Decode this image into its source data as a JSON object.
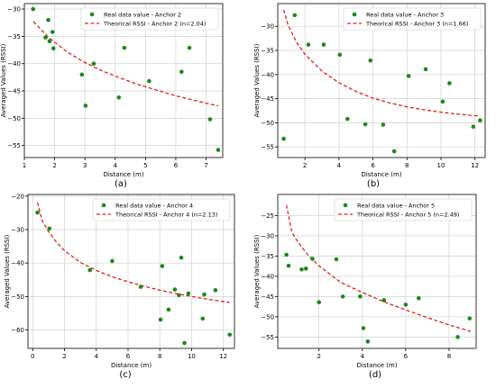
{
  "chart_data": [
    {
      "type": "scatter",
      "panel_label": "(a)",
      "xlabel": "Distance (m)",
      "ylabel": "Averaged Values (RSSI)",
      "xlim": [
        1.0,
        7.55
      ],
      "ylim": [
        -57.2,
        -29.0
      ],
      "xticks": [
        1,
        2,
        3,
        4,
        5,
        6,
        7
      ],
      "yticks": [
        -55,
        -50,
        -45,
        -40,
        -35,
        -30
      ],
      "grid": true,
      "legend_position": "top-right",
      "series": [
        {
          "name": "Real data value - Anchor 2",
          "kind": "points",
          "color": "#1a8a1a",
          "x": [
            1.29,
            1.7,
            1.79,
            1.83,
            1.93,
            1.96,
            2.9,
            3.02,
            3.29,
            4.12,
            4.3,
            5.12,
            6.19,
            6.45,
            7.13,
            7.4
          ],
          "y": [
            -30.0,
            -35.2,
            -32.0,
            -35.9,
            -34.2,
            -37.2,
            -42.0,
            -47.7,
            -40.0,
            -46.2,
            -37.1,
            -43.2,
            -41.5,
            -37.1,
            -50.2,
            -55.8
          ]
        },
        {
          "name": "Theorical RSSI - Anchor 2 (n=2.04)",
          "kind": "line",
          "color": "#e0201c",
          "x": [
            1.3,
            1.8,
            2.4,
            3.0,
            3.6,
            4.2,
            4.8,
            5.4,
            6.0,
            6.6,
            7.2,
            7.4
          ],
          "y": [
            -32.3,
            -35.2,
            -37.8,
            -39.8,
            -41.4,
            -42.7,
            -43.9,
            -44.9,
            -45.9,
            -46.7,
            -47.5,
            -47.7
          ]
        }
      ]
    },
    {
      "type": "scatter",
      "panel_label": "(b)",
      "xlabel": "Distance (m)",
      "ylabel": "Averaged Values (RSSI)",
      "xlim": [
        0.4,
        12.6
      ],
      "ylim": [
        -57.2,
        -25.3
      ],
      "xticks": [
        2,
        4,
        6,
        8,
        10,
        12
      ],
      "yticks": [
        -55,
        -50,
        -45,
        -40,
        -35,
        -30
      ],
      "grid": true,
      "legend_position": "top-right",
      "series": [
        {
          "name": "Real data value - Anchor 3",
          "kind": "points",
          "color": "#1a8a1a",
          "x": [
            0.75,
            1.4,
            2.2,
            3.1,
            4.05,
            4.5,
            5.55,
            5.85,
            6.6,
            7.25,
            8.1,
            9.1,
            10.1,
            10.5,
            11.9,
            12.3
          ],
          "y": [
            -53.3,
            -27.7,
            -33.8,
            -33.8,
            -35.9,
            -49.2,
            -50.3,
            -37.1,
            -50.4,
            -55.9,
            -40.3,
            -38.9,
            -45.6,
            -41.8,
            -50.8,
            -49.5
          ]
        },
        {
          "name": "Theorical RSSI - Anchor 3 (n=1.66)",
          "kind": "line",
          "color": "#e0201c",
          "x": [
            0.75,
            1.0,
            1.5,
            2.0,
            3.0,
            4.0,
            5.0,
            6.0,
            7.0,
            8.0,
            9.0,
            10.0,
            11.0,
            12.3
          ],
          "y": [
            -26.6,
            -29.7,
            -33.3,
            -35.8,
            -39.3,
            -41.7,
            -43.5,
            -44.9,
            -45.9,
            -46.7,
            -47.3,
            -47.8,
            -48.2,
            -48.6
          ]
        }
      ]
    },
    {
      "type": "scatter",
      "panel_label": "(c)",
      "xlabel": "Distance (m)",
      "ylabel": "Averaged Values (RSSI)",
      "xlim": [
        -0.3,
        12.7
      ],
      "ylim": [
        -65.5,
        -19.5
      ],
      "xticks": [
        0,
        2,
        4,
        6,
        8,
        10,
        12
      ],
      "yticks": [
        -60,
        -50,
        -40,
        -30,
        -20
      ],
      "grid": true,
      "legend_position": "top-right",
      "series": [
        {
          "name": "Real data value - Anchor 4",
          "kind": "points",
          "color": "#1a8a1a",
          "x": [
            0.3,
            1.05,
            3.6,
            5.0,
            6.8,
            8.05,
            8.15,
            8.55,
            8.95,
            9.2,
            9.35,
            9.55,
            9.8,
            10.7,
            10.8,
            11.5,
            12.4
          ],
          "y": [
            -24.9,
            -29.7,
            -42.1,
            -39.4,
            -47.1,
            -56.9,
            -40.9,
            -53.9,
            -47.9,
            -49.6,
            -38.4,
            -63.9,
            -49.1,
            -56.6,
            -49.4,
            -48.1,
            -61.4
          ]
        },
        {
          "name": "Theorical RSSI - Anchor 4 (n=2.13)",
          "kind": "line",
          "color": "#e0201c",
          "x": [
            0.3,
            0.6,
            1.0,
            1.5,
            2.0,
            3.0,
            4.0,
            5.0,
            6.0,
            7.0,
            8.0,
            9.0,
            10.0,
            11.0,
            12.4
          ],
          "y": [
            -21.9,
            -27.4,
            -30.6,
            -33.8,
            -36.3,
            -39.8,
            -42.2,
            -44.1,
            -45.6,
            -46.9,
            -48.1,
            -49.1,
            -50.0,
            -50.8,
            -51.8
          ]
        }
      ]
    },
    {
      "type": "scatter",
      "panel_label": "(d)",
      "xlabel": "Distance (m)",
      "ylabel": "Averaged Values (RSSI)",
      "xlim": [
        0.1,
        9.25
      ],
      "ylim": [
        -57.8,
        -19.8
      ],
      "xticks": [
        2,
        4,
        6,
        8
      ],
      "yticks": [
        -55,
        -50,
        -45,
        -40,
        -35,
        -30,
        -25
      ],
      "grid": true,
      "legend_position": "top-right",
      "series": [
        {
          "name": "Real data value - Anchor 5",
          "kind": "points",
          "color": "#1a8a1a",
          "x": [
            0.5,
            0.6,
            1.2,
            1.4,
            1.7,
            2.0,
            2.8,
            3.1,
            3.9,
            4.05,
            4.25,
            5.0,
            6.0,
            6.6,
            8.4,
            8.95
          ],
          "y": [
            -34.7,
            -37.4,
            -38.3,
            -38.1,
            -35.7,
            -46.4,
            -35.8,
            -45.0,
            -45.0,
            -52.8,
            -56.1,
            -45.9,
            -47.0,
            -45.4,
            -55.0,
            -50.4
          ]
        },
        {
          "name": "Theorical RSSI - Anchor 5 (n=2.49)",
          "kind": "line",
          "color": "#e0201c",
          "x": [
            0.5,
            0.75,
            1.0,
            1.5,
            2.0,
            3.0,
            4.0,
            5.0,
            6.0,
            7.0,
            8.0,
            9.0
          ],
          "y": [
            -22.4,
            -29.1,
            -31.3,
            -34.8,
            -37.4,
            -41.5,
            -44.0,
            -46.3,
            -48.3,
            -50.2,
            -52.0,
            -53.6
          ]
        }
      ]
    }
  ]
}
